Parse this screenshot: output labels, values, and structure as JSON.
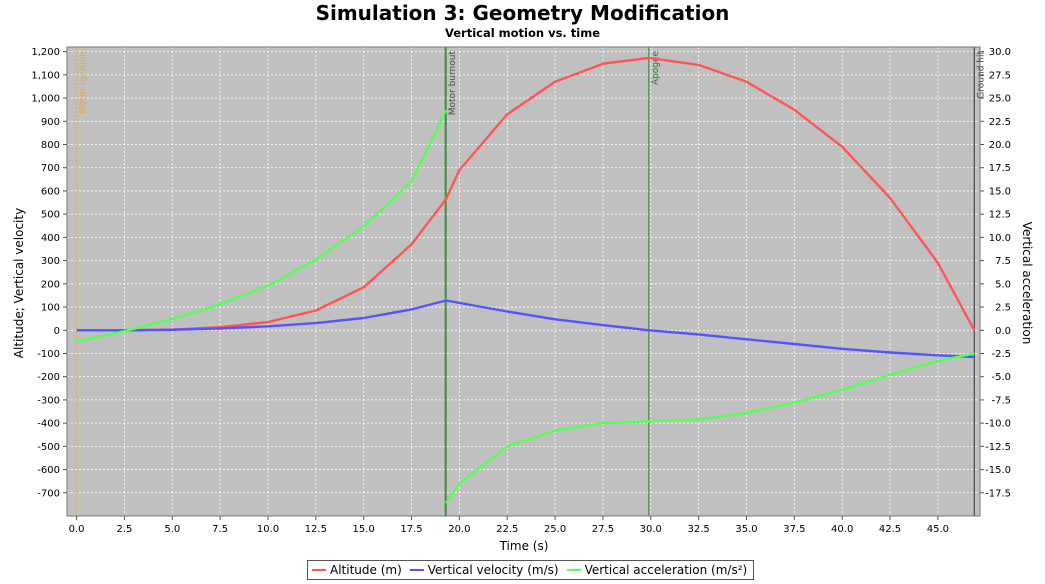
{
  "chart_data": {
    "type": "line",
    "title": "Simulation 3: Geometry Modification",
    "subtitle": "Vertical motion vs. time",
    "xlabel": "Time (s)",
    "ylabel_left": "Altitude; Vertical velocity",
    "ylabel_right": "Vertical acceleration",
    "xlim": [
      -0.5,
      47.2
    ],
    "ylim_left": [
      -800,
      1220
    ],
    "ylim_right": [
      -20,
      30.5
    ],
    "x_ticks": [
      "0.0",
      "2.5",
      "5.0",
      "7.5",
      "10.0",
      "12.5",
      "15.0",
      "17.5",
      "20.0",
      "22.5",
      "25.0",
      "27.5",
      "30.0",
      "32.5",
      "35.0",
      "37.5",
      "40.0",
      "42.5",
      "45.0"
    ],
    "left_ticks": [
      "1,200",
      "1,100",
      "1,000",
      "900",
      "800",
      "700",
      "600",
      "500",
      "400",
      "300",
      "200",
      "100",
      "0",
      "-100",
      "-200",
      "-300",
      "-400",
      "-500",
      "-600",
      "-700"
    ],
    "right_ticks": [
      "30.0",
      "27.5",
      "25.0",
      "22.5",
      "20.0",
      "17.5",
      "15.0",
      "12.5",
      "10.0",
      "7.5",
      "5.0",
      "2.5",
      "0.0",
      "-2.5",
      "-5.0",
      "-7.5",
      "-10.0",
      "-12.5",
      "-15.0",
      "-17.5"
    ],
    "grid": true,
    "legend_position": "bottom-center",
    "events": [
      {
        "label": "Motor ignition",
        "x": 0.0,
        "color": "#e8a33c"
      },
      {
        "label": "Motor burnout",
        "x": 19.3,
        "color": "#4a4a4a"
      },
      {
        "label": "Apogee",
        "x": 29.9,
        "color": "#2f7f2f"
      },
      {
        "label": "Ground hit",
        "x": 46.9,
        "color": "#333333"
      }
    ],
    "burnout_marker_color": "#33cc33",
    "series": [
      {
        "name": "Altitude (m)",
        "color": "#ff5555",
        "axis": "left",
        "x": [
          0,
          2.5,
          5,
          7.5,
          10,
          12.5,
          15,
          17.5,
          19.3,
          20,
          22.5,
          25,
          27.5,
          29.9,
          32.5,
          35,
          37.5,
          40,
          42.5,
          45,
          46.9
        ],
        "y": [
          0,
          0,
          3,
          13,
          35,
          85,
          185,
          370,
          565,
          690,
          930,
          1070,
          1148,
          1173,
          1143,
          1070,
          950,
          790,
          570,
          290,
          0
        ]
      },
      {
        "name": "Vertical velocity (m/s)",
        "color": "#5555ff",
        "axis": "left",
        "x": [
          0,
          2.5,
          5,
          7.5,
          10,
          12.5,
          15,
          17.5,
          19.3,
          22.5,
          25,
          27.5,
          29.9,
          32.5,
          35,
          37.5,
          40,
          42.5,
          45,
          46.9
        ],
        "y": [
          0,
          0,
          2,
          8,
          17,
          31,
          53,
          90,
          128,
          81,
          47,
          22,
          0,
          -18,
          -39,
          -59,
          -80,
          -96,
          -108,
          -115
        ]
      },
      {
        "name": "Vertical acceleration (m/s²)",
        "color": "#55ff55",
        "axis": "right",
        "x": [
          0,
          2.5,
          5,
          7.5,
          10,
          12.5,
          15,
          17.5,
          19.3
        ],
        "y": [
          -1.2,
          -0.1,
          1.2,
          2.8,
          4.8,
          7.6,
          11.2,
          16.0,
          23.7
        ],
        "x2": [
          19.3,
          20,
          22.5,
          25,
          27.5,
          30,
          32.5,
          35,
          37.5,
          40,
          42.5,
          45,
          46.9
        ],
        "y2": [
          -18.6,
          -16.5,
          -12.5,
          -10.8,
          -10.0,
          -9.8,
          -9.6,
          -8.9,
          -7.8,
          -6.4,
          -4.8,
          -3.3,
          -2.5
        ]
      }
    ]
  }
}
